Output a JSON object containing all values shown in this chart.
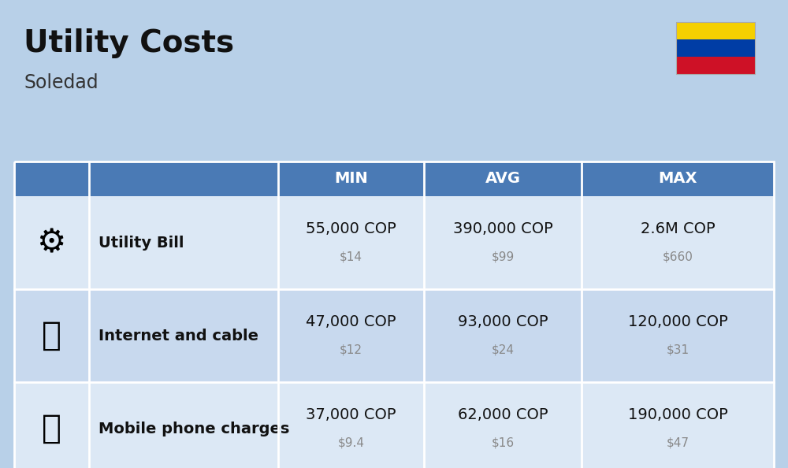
{
  "title": "Utility Costs",
  "subtitle": "Soledad",
  "background_color": "#b8d0e8",
  "header_bg_color": "#4a7ab5",
  "header_text_color": "#ffffff",
  "row_bg_color_odd": "#dce8f5",
  "row_bg_color_even": "#c8d9ee",
  "divider_color": "#ffffff",
  "rows": [
    {
      "label": "Utility Bill",
      "min_cop": "55,000 COP",
      "min_usd": "$14",
      "avg_cop": "390,000 COP",
      "avg_usd": "$99",
      "max_cop": "2.6M COP",
      "max_usd": "$660",
      "icon": "utility"
    },
    {
      "label": "Internet and cable",
      "min_cop": "47,000 COP",
      "min_usd": "$12",
      "avg_cop": "93,000 COP",
      "avg_usd": "$24",
      "max_cop": "120,000 COP",
      "max_usd": "$31",
      "icon": "internet"
    },
    {
      "label": "Mobile phone charges",
      "min_cop": "37,000 COP",
      "min_usd": "$9.4",
      "avg_cop": "62,000 COP",
      "avg_usd": "$16",
      "max_cop": "190,000 COP",
      "max_usd": "$47",
      "icon": "mobile"
    }
  ],
  "flag_colors": [
    "#f5d000",
    "#003da5",
    "#ce1126"
  ],
  "cop_fontsize": 14,
  "usd_fontsize": 11,
  "label_fontsize": 14,
  "header_fontsize": 14,
  "title_fontsize": 28,
  "subtitle_fontsize": 17
}
